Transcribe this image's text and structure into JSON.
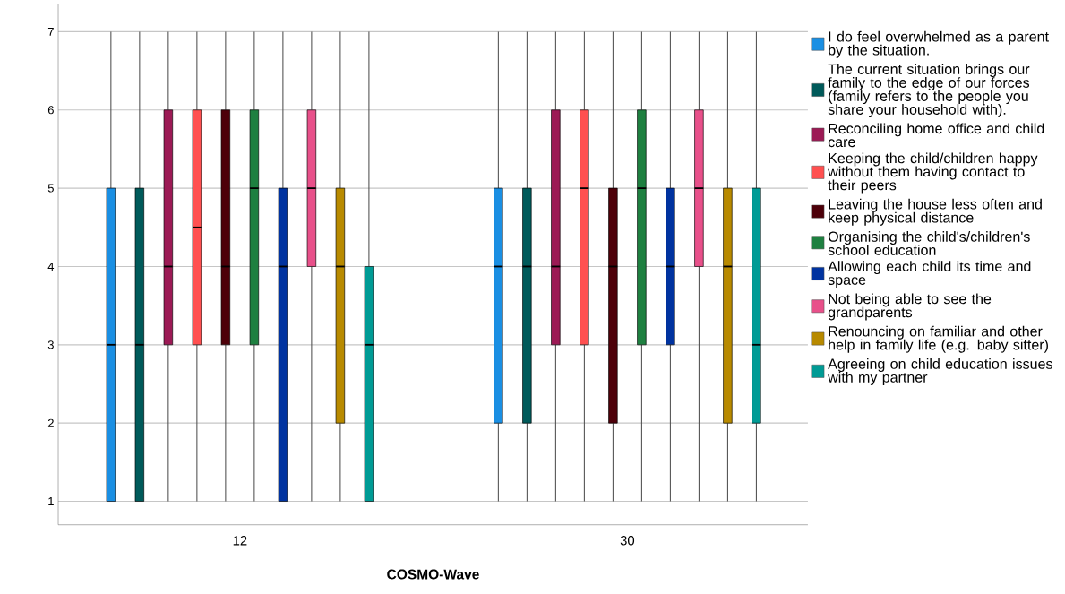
{
  "chart_data": {
    "type": "box",
    "xlabel": "COSMO-Wave",
    "categories": [
      "12",
      "30"
    ],
    "ylim": [
      0.7,
      7.35
    ],
    "yticks": [
      1,
      2,
      3,
      4,
      5,
      6,
      7
    ],
    "grid": "y",
    "legend": "right",
    "series": [
      {
        "name": "I do feel overwhelmed as a parent by the situation.",
        "color": "#1a8fe3",
        "boxes": [
          {
            "low": 1,
            "q1": 1,
            "median": 3,
            "q3": 5,
            "high": 7
          },
          {
            "low": 1,
            "q1": 2,
            "median": 4,
            "q3": 5,
            "high": 7
          }
        ]
      },
      {
        "name": "The current situation brings our family to the edge of our forces (family refers to the people you share your household with).",
        "color": "#005a5a",
        "boxes": [
          {
            "low": 1,
            "q1": 1,
            "median": 3,
            "q3": 5,
            "high": 7
          },
          {
            "low": 1,
            "q1": 2,
            "median": 4,
            "q3": 5,
            "high": 7
          }
        ]
      },
      {
        "name": "Reconciling home office and child care",
        "color": "#9c1a55",
        "boxes": [
          {
            "low": 1,
            "q1": 3,
            "median": 4,
            "q3": 6,
            "high": 7
          },
          {
            "low": 1,
            "q1": 3,
            "median": 4,
            "q3": 6,
            "high": 7
          }
        ]
      },
      {
        "name": "Keeping the child/children happy without them having contact to their peers",
        "color": "#ff5050",
        "boxes": [
          {
            "low": 1,
            "q1": 3,
            "median": 4.5,
            "q3": 6,
            "high": 7
          },
          {
            "low": 1,
            "q1": 3,
            "median": 5,
            "q3": 6,
            "high": 7
          }
        ]
      },
      {
        "name": "Leaving the house less often and keep physical distance",
        "color": "#4d0009",
        "boxes": [
          {
            "low": 1,
            "q1": 3,
            "median": 4,
            "q3": 6,
            "high": 7
          },
          {
            "low": 1,
            "q1": 2,
            "median": 4,
            "q3": 5,
            "high": 7
          }
        ]
      },
      {
        "name": "Organising the child's/children's school education",
        "color": "#1e8040",
        "boxes": [
          {
            "low": 1,
            "q1": 3,
            "median": 5,
            "q3": 6,
            "high": 7
          },
          {
            "low": 1,
            "q1": 3,
            "median": 5,
            "q3": 6,
            "high": 7
          }
        ]
      },
      {
        "name": "Allowing each child its time and space",
        "color": "#0033a0",
        "boxes": [
          {
            "low": 1,
            "q1": 1,
            "median": 4,
            "q3": 5,
            "high": 7
          },
          {
            "low": 1,
            "q1": 3,
            "median": 4,
            "q3": 5,
            "high": 7
          }
        ]
      },
      {
        "name": "Not being able to see the grandparents",
        "color": "#e8508a",
        "boxes": [
          {
            "low": 1,
            "q1": 4,
            "median": 5,
            "q3": 6,
            "high": 7
          },
          {
            "low": 1,
            "q1": 4,
            "median": 5,
            "q3": 6,
            "high": 7
          }
        ]
      },
      {
        "name": "Renouncing on familiar and other help in family life (e.g. baby sitter)",
        "color": "#b88a00",
        "boxes": [
          {
            "low": 1,
            "q1": 2,
            "median": 4,
            "q3": 5,
            "high": 7
          },
          {
            "low": 1,
            "q1": 2,
            "median": 4,
            "q3": 5,
            "high": 7
          }
        ]
      },
      {
        "name": "Agreeing on child education issues with my partner",
        "color": "#009b95",
        "boxes": [
          {
            "low": 1,
            "q1": 1,
            "median": 3,
            "q3": 4,
            "high": 7
          },
          {
            "low": 1,
            "q1": 2,
            "median": 3,
            "q3": 5,
            "high": 7
          }
        ]
      }
    ]
  }
}
